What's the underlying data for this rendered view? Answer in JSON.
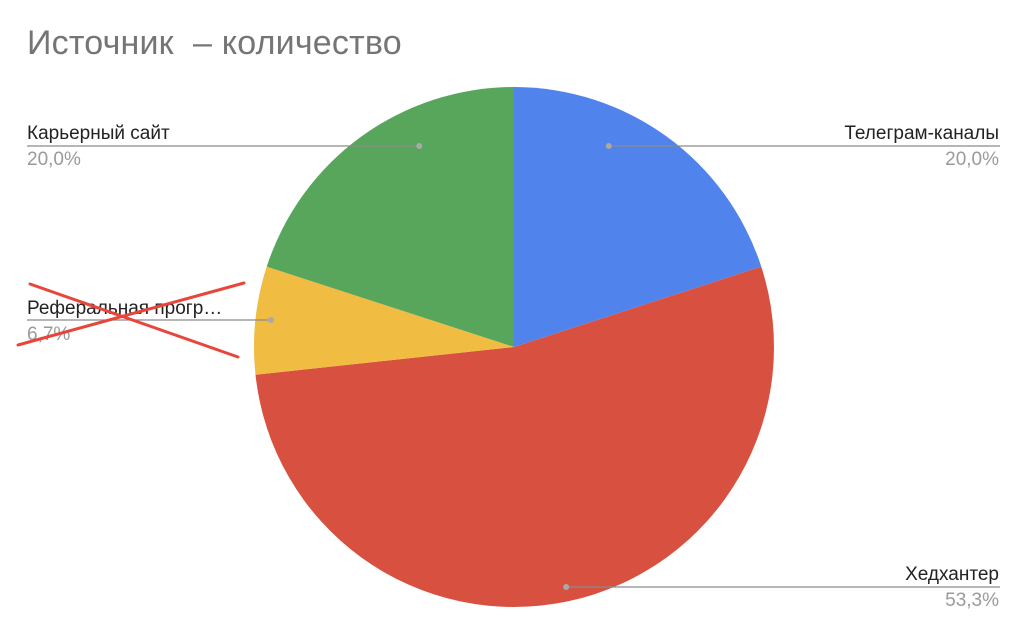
{
  "chart_data": {
    "type": "pie",
    "title": "Источник  – количество",
    "slices": [
      {
        "label": "Телеграм-каналы",
        "display_label": "Телеграм-каналы",
        "value": 20.0,
        "percent_label": "20,0%",
        "color": "#5083EC"
      },
      {
        "label": "Хедхантер",
        "display_label": "Хедхантер",
        "value": 53.3,
        "percent_label": "53,3%",
        "color": "#D85140"
      },
      {
        "label": "Реферальная программа",
        "display_label": "Реферальная прогр…",
        "value": 6.7,
        "percent_label": "6,7%",
        "color": "#F0BC42"
      },
      {
        "label": "Карьерный сайт",
        "display_label": "Карьерный сайт",
        "value": 20.0,
        "percent_label": "20,0%",
        "color": "#58A55C"
      }
    ],
    "start_angle_deg": 0,
    "direction": "clockwise",
    "label_placement": "outside-with-leader-lines",
    "annotation": {
      "type": "red-cross",
      "target": "Реферальная программа",
      "color": "#E8463A"
    }
  }
}
